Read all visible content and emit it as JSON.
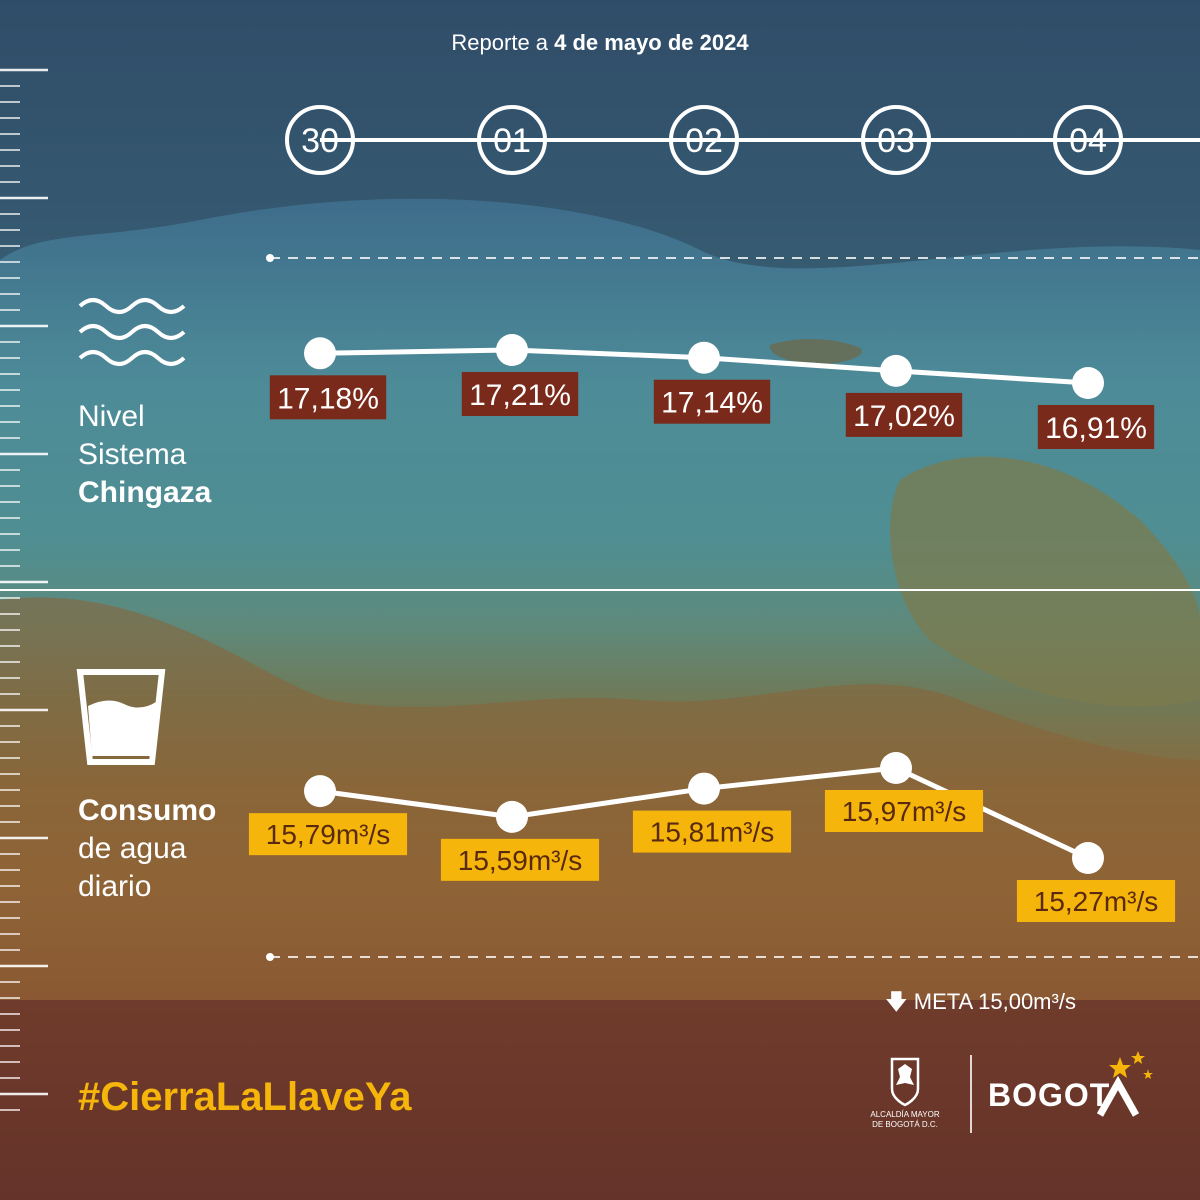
{
  "header": {
    "report_prefix": "Reporte a ",
    "report_date": "4 de mayo de 2024"
  },
  "sections": {
    "nivel": {
      "line1": "Nivel",
      "line2": "Sistema",
      "line3": "Chingaza"
    },
    "consumo": {
      "line1": "Consumo",
      "line2": "de agua",
      "line3": "diario"
    }
  },
  "meta_label": "META 15,00m³/s",
  "hashtag": "#CierraLaLlaveYa",
  "logos": {
    "alcaldia_line1": "ALCALDÍA MAYOR",
    "alcaldia_line2": "DE BOGOTÁ D.C.",
    "bogota": "BOGOT"
  },
  "colors": {
    "level_label_bg": "#7a2a1a",
    "consumption_label_bg": "#f5b50a",
    "white": "#ffffff"
  },
  "chart_data": [
    {
      "type": "line",
      "categories": [
        "30",
        "01",
        "02",
        "03",
        "04"
      ],
      "series": [
        {
          "values": [
            17.18,
            17.21,
            17.14,
            17.02,
            16.91
          ]
        }
      ],
      "labels": [
        "17,18%",
        "17,21%",
        "17,14%",
        "17,02%",
        "16,91%"
      ]
    },
    {
      "type": "line",
      "categories": [
        "30",
        "01",
        "02",
        "03",
        "04"
      ],
      "series": [
        {
          "values": [
            15.79,
            15.59,
            15.81,
            15.97,
            15.27
          ]
        }
      ],
      "labels": [
        "15,79m³/s",
        "15,59m³/s",
        "15,81m³/s",
        "15,97m³/s",
        "15,27m³/s"
      ]
    }
  ]
}
